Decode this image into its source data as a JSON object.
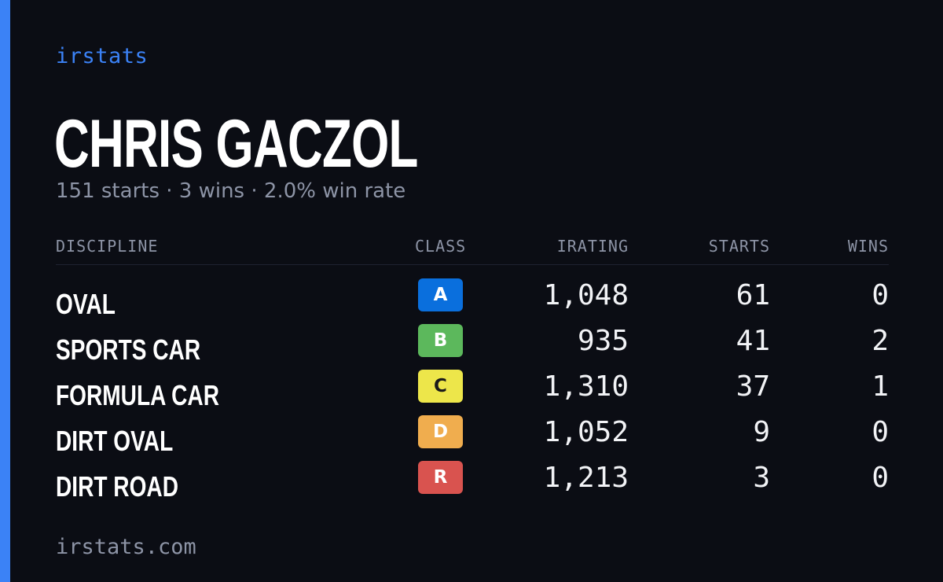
{
  "brand": "irstats",
  "driver": {
    "name": "CHRIS GACZOL",
    "summary": "151 starts · 3 wins · 2.0% win rate"
  },
  "table": {
    "headers": {
      "discipline": "DISCIPLINE",
      "class": "CLASS",
      "irating": "IRATING",
      "starts": "STARTS",
      "wins": "WINS"
    },
    "rows": [
      {
        "discipline": "OVAL",
        "class": "A",
        "class_color": "#0a6fdd",
        "class_text_color": "#ffffff",
        "irating": "1,048",
        "starts": "61",
        "wins": "0"
      },
      {
        "discipline": "SPORTS CAR",
        "class": "B",
        "class_color": "#5cb85c",
        "class_text_color": "#ffffff",
        "irating": "935",
        "starts": "41",
        "wins": "2"
      },
      {
        "discipline": "FORMULA CAR",
        "class": "C",
        "class_color": "#ede64a",
        "class_text_color": "#1a1a1a",
        "irating": "1,310",
        "starts": "37",
        "wins": "1"
      },
      {
        "discipline": "DIRT OVAL",
        "class": "D",
        "class_color": "#f0ad4e",
        "class_text_color": "#ffffff",
        "irating": "1,052",
        "starts": "9",
        "wins": "0"
      },
      {
        "discipline": "DIRT ROAD",
        "class": "R",
        "class_color": "#d9534f",
        "class_text_color": "#ffffff",
        "irating": "1,213",
        "starts": "3",
        "wins": "0"
      }
    ]
  },
  "footer": "irstats.com",
  "colors": {
    "accent": "#3b82f6",
    "background": "#0b0d14",
    "muted_text": "#8d94a6"
  }
}
